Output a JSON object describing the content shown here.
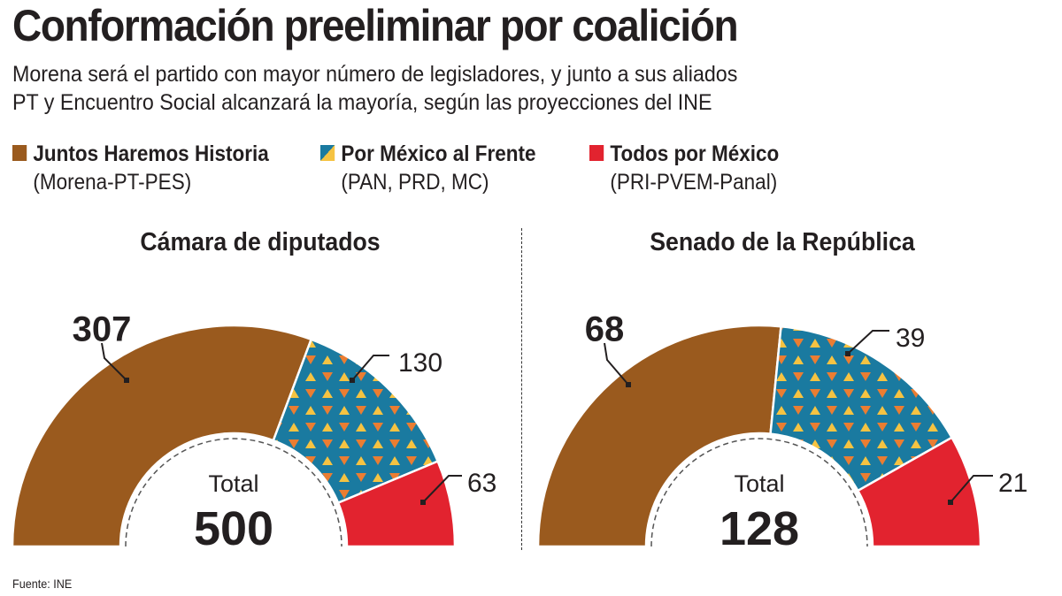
{
  "title": "Conformación preeliminar por coalición",
  "subtitle_lines": [
    "Morena será el partido con mayor número de legisladores, y junto a sus aliados",
    "PT y Encuentro Social alcanzará la mayoría, según las proyecciones del INE"
  ],
  "legend": [
    {
      "name": "Juntos Haremos Historia",
      "parties": "(Morena-PT-PES)",
      "color": "#9a5a1e"
    },
    {
      "name": "Por México al Frente",
      "parties": "(PAN, PRD, MC)",
      "color": "#1a7aa0",
      "pattern_colors": [
        "#f5c342",
        "#ea7d32"
      ]
    },
    {
      "name": "Todos por México",
      "parties": "(PRI-PVEM-Panal)",
      "color": "#e2232f"
    }
  ],
  "source": "Fuente: INE",
  "chart_data": [
    {
      "type": "pie",
      "variant": "half-donut",
      "title": "Cámara de diputados",
      "categories": [
        "Juntos Haremos Historia",
        "Por México al Frente",
        "Todos por México"
      ],
      "values": [
        307,
        130,
        63
      ],
      "total_label": "Total",
      "total": 500
    },
    {
      "type": "pie",
      "variant": "half-donut",
      "title": "Senado de la República",
      "categories": [
        "Juntos Haremos Historia",
        "Por México al Frente",
        "Todos por México"
      ],
      "values": [
        68,
        39,
        21
      ],
      "total_label": "Total",
      "total": 128
    }
  ]
}
